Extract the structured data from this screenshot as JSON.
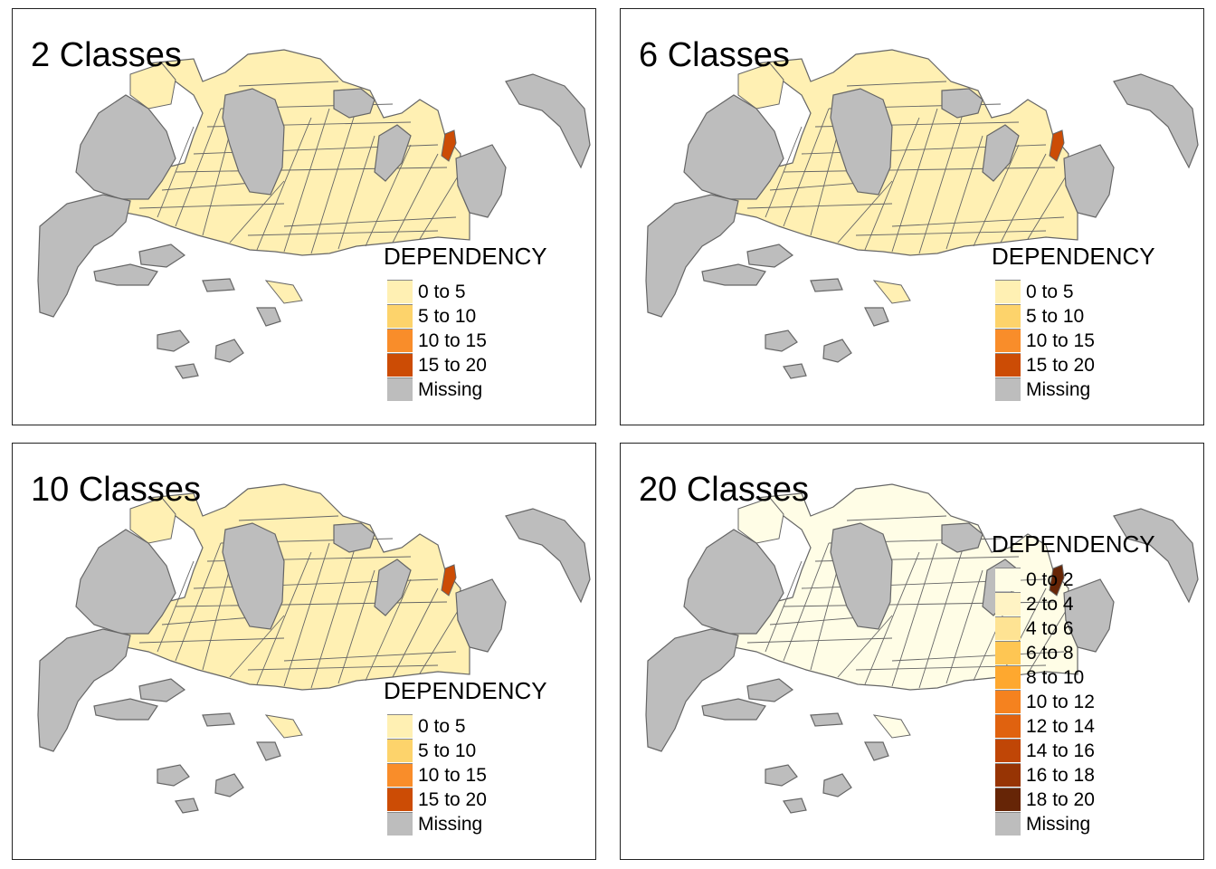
{
  "colors": {
    "missing": "#bdbdbd",
    "outline": "#666666",
    "background": "#ffffff",
    "panel_border": "#222222"
  },
  "panels": [
    {
      "title": "2 Classes",
      "legend_title": "DEPENDENCY",
      "legend": [
        {
          "label": "0 to 5",
          "color": "#fff0b3"
        },
        {
          "label": "5 to 10",
          "color": "#fdd36b"
        },
        {
          "label": "10 to 15",
          "color": "#f98d2a"
        },
        {
          "label": "15 to 20",
          "color": "#cc4c05"
        },
        {
          "label": "Missing",
          "color": "#bdbdbd"
        }
      ]
    },
    {
      "title": "6 Classes",
      "legend_title": "DEPENDENCY",
      "legend": [
        {
          "label": "0 to 5",
          "color": "#fff0b3"
        },
        {
          "label": "5 to 10",
          "color": "#fdd36b"
        },
        {
          "label": "10 to 15",
          "color": "#f98d2a"
        },
        {
          "label": "15 to 20",
          "color": "#cc4c05"
        },
        {
          "label": "Missing",
          "color": "#bdbdbd"
        }
      ]
    },
    {
      "title": "10 Classes",
      "legend_title": "DEPENDENCY",
      "legend": [
        {
          "label": "0 to 5",
          "color": "#fff0b3"
        },
        {
          "label": "5 to 10",
          "color": "#fdd36b"
        },
        {
          "label": "10 to 15",
          "color": "#f98d2a"
        },
        {
          "label": "15 to 20",
          "color": "#cc4c05"
        },
        {
          "label": "Missing",
          "color": "#bdbdbd"
        }
      ]
    },
    {
      "title": "20 Classes",
      "legend_title": "DEPENDENCY",
      "legend": [
        {
          "label": "0 to 2",
          "color": "#fffde6"
        },
        {
          "label": "2 to 4",
          "color": "#fff3c4"
        },
        {
          "label": "4 to 6",
          "color": "#fee393"
        },
        {
          "label": "6 to 8",
          "color": "#fec653"
        },
        {
          "label": "8 to 10",
          "color": "#fea82f"
        },
        {
          "label": "10 to 12",
          "color": "#f5821f"
        },
        {
          "label": "12 to 14",
          "color": "#e0620f"
        },
        {
          "label": "14 to 16",
          "color": "#c04606"
        },
        {
          "label": "16 to 18",
          "color": "#973404"
        },
        {
          "label": "18 to 20",
          "color": "#662506"
        },
        {
          "label": "Missing",
          "color": "#bdbdbd"
        }
      ]
    }
  ]
}
